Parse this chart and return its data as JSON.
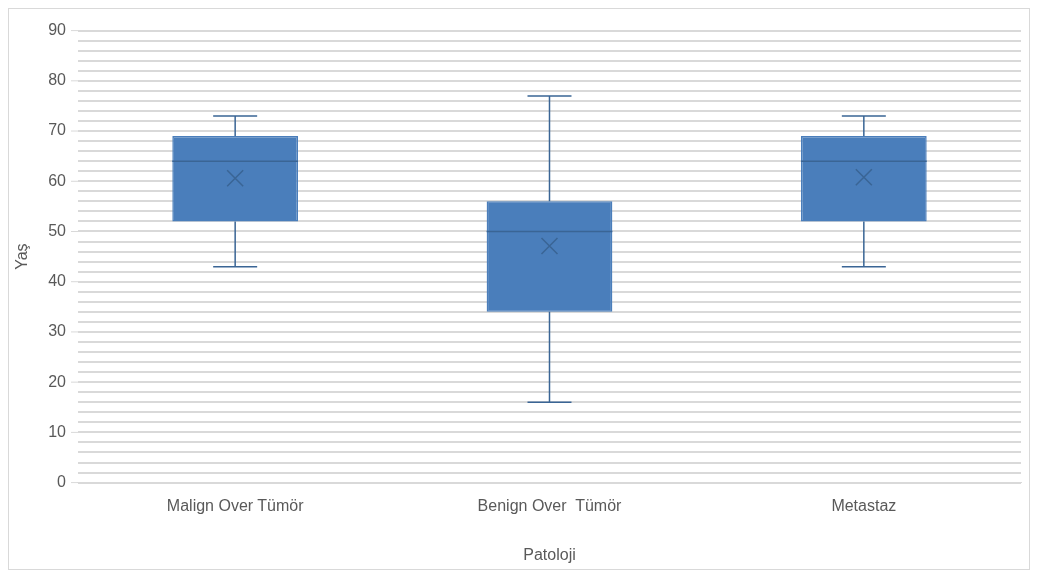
{
  "chart_data": {
    "type": "box",
    "xlabel": "Patoloji",
    "ylabel": "Yaş",
    "categories": [
      "Malign Over Tümör",
      "Benign Over  Tümör",
      "Metastaz"
    ],
    "color": "#4a7ebb",
    "boxes": [
      {
        "low": 43,
        "q1": 52,
        "median": 64,
        "q3": 69,
        "high": 73,
        "mean": 60.6
      },
      {
        "low": 16,
        "q1": 34,
        "median": 50,
        "q3": 56,
        "high": 77,
        "mean": 47.1
      },
      {
        "low": 43,
        "q1": 52,
        "median": 64,
        "q3": 69,
        "high": 73,
        "mean": 60.8
      }
    ],
    "ylim": [
      0,
      90
    ],
    "yticks": [
      0,
      {
        "value": 2,
        "label": null
      },
      {
        "value": 4,
        "label": null
      },
      {
        "value": 6,
        "label": null
      },
      {
        "value": 8,
        "label": null
      },
      10,
      {
        "value": 12,
        "label": null
      },
      {
        "value": 14,
        "label": null
      },
      {
        "value": 16,
        "label": null
      },
      {
        "value": 18,
        "label": null
      },
      20,
      {
        "value": 22,
        "label": null
      },
      {
        "value": 24,
        "label": null
      },
      {
        "value": 26,
        "label": null
      },
      {
        "value": 28,
        "label": null
      },
      30,
      {
        "value": 32,
        "label": null
      },
      {
        "value": 34,
        "label": null
      },
      {
        "value": 36,
        "label": null
      },
      {
        "value": 38,
        "label": null
      },
      40,
      {
        "value": 42,
        "label": null
      },
      {
        "value": 44,
        "label": null
      },
      {
        "value": 46,
        "label": null
      },
      {
        "value": 48,
        "label": null
      },
      50,
      {
        "value": 52,
        "label": null
      },
      {
        "value": 54,
        "label": null
      },
      {
        "value": 56,
        "label": null
      },
      {
        "value": 58,
        "label": null
      },
      60,
      {
        "value": 62,
        "label": null
      },
      {
        "value": 64,
        "label": null
      },
      {
        "value": 66,
        "label": null
      },
      {
        "value": 68,
        "label": null
      },
      70,
      {
        "value": 72,
        "label": null
      },
      {
        "value": 74,
        "label": null
      },
      {
        "value": 76,
        "label": null
      },
      {
        "value": 78,
        "label": null
      },
      80,
      {
        "value": 82,
        "label": null
      },
      {
        "value": 84,
        "label": null
      },
      {
        "value": 86,
        "label": null
      },
      {
        "value": 88,
        "label": null
      },
      90
    ],
    "grid": "y",
    "legend": false
  }
}
